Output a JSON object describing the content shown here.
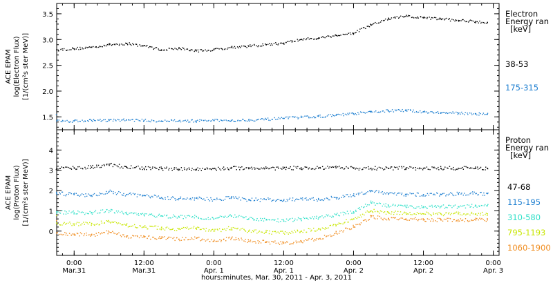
{
  "chart_data": [
    {
      "type": "scatter",
      "ylabel": [
        "ACE EPAM",
        "log(Electron Flux)",
        "[1/(cm²s ster MeV)]"
      ],
      "ylim": [
        1.25,
        3.7
      ],
      "yticks": [
        "3.5",
        "3.0",
        "2.5",
        "2.0",
        "1.5"
      ],
      "ytick_values": [
        3.5,
        3.0,
        2.5,
        2.0,
        1.5
      ],
      "legend_title": [
        "Electron",
        "Energy ran",
        "[keV]"
      ],
      "series": [
        {
          "name": "38-53",
          "color": "#000000",
          "x": [
            -6,
            0,
            6,
            12,
            18,
            24,
            30,
            36,
            42,
            48,
            54,
            60,
            66,
            72,
            78,
            84,
            90,
            96,
            102,
            108,
            114,
            120,
            126,
            132,
            138,
            142
          ],
          "y": [
            2.8,
            2.82,
            2.85,
            2.9,
            2.92,
            2.88,
            2.8,
            2.83,
            2.78,
            2.8,
            2.85,
            2.87,
            2.9,
            2.93,
            3.0,
            3.03,
            3.08,
            3.12,
            3.28,
            3.4,
            3.45,
            3.42,
            3.4,
            3.37,
            3.35,
            3.33
          ]
        },
        {
          "name": "175-315",
          "color": "#1e7fd0",
          "x": [
            -6,
            0,
            6,
            12,
            18,
            24,
            30,
            36,
            42,
            48,
            54,
            60,
            66,
            72,
            78,
            84,
            90,
            96,
            102,
            108,
            114,
            120,
            126,
            132,
            138,
            142
          ],
          "y": [
            1.42,
            1.42,
            1.43,
            1.43,
            1.44,
            1.43,
            1.42,
            1.42,
            1.42,
            1.43,
            1.43,
            1.44,
            1.45,
            1.47,
            1.49,
            1.51,
            1.53,
            1.56,
            1.59,
            1.62,
            1.62,
            1.6,
            1.58,
            1.57,
            1.56,
            1.55
          ]
        }
      ]
    },
    {
      "type": "scatter",
      "ylabel": [
        "ACE EPAM",
        "log(Proton Flux)",
        "[1/(cm²s ster MeV)]"
      ],
      "ylim": [
        -1.2,
        5.0
      ],
      "yticks": [
        "4",
        "3",
        "2",
        "1",
        "0"
      ],
      "ytick_values": [
        4,
        3,
        2,
        1,
        0
      ],
      "legend_title": [
        "Proton",
        "Energy ran",
        "[keV]"
      ],
      "series": [
        {
          "name": "47-68",
          "color": "#000000",
          "x": [
            -6,
            0,
            6,
            12,
            18,
            24,
            30,
            36,
            42,
            48,
            54,
            60,
            66,
            72,
            78,
            84,
            90,
            96,
            102,
            108,
            114,
            120,
            126,
            132,
            138,
            142
          ],
          "y": [
            3.1,
            3.12,
            3.15,
            3.3,
            3.15,
            3.1,
            3.08,
            3.05,
            3.05,
            3.08,
            3.1,
            3.12,
            3.1,
            3.1,
            3.12,
            3.1,
            3.12,
            3.1,
            3.1,
            3.1,
            3.1,
            3.1,
            3.1,
            3.1,
            3.1,
            3.1
          ]
        },
        {
          "name": "115-195",
          "color": "#1e7fd0",
          "x": [
            -6,
            0,
            6,
            12,
            18,
            24,
            30,
            36,
            42,
            48,
            54,
            60,
            66,
            72,
            78,
            84,
            90,
            96,
            102,
            108,
            114,
            120,
            126,
            132,
            138,
            142
          ],
          "y": [
            1.85,
            1.8,
            1.75,
            1.95,
            1.8,
            1.75,
            1.65,
            1.6,
            1.62,
            1.55,
            1.65,
            1.55,
            1.55,
            1.5,
            1.6,
            1.55,
            1.65,
            1.75,
            2.0,
            1.85,
            1.8,
            1.8,
            1.8,
            1.85,
            1.85,
            1.85
          ]
        },
        {
          "name": "310-580",
          "color": "#2ee0c8",
          "x": [
            -6,
            0,
            6,
            12,
            18,
            24,
            30,
            36,
            42,
            48,
            54,
            60,
            66,
            72,
            78,
            84,
            90,
            96,
            102,
            108,
            114,
            120,
            126,
            132,
            138,
            142
          ],
          "y": [
            0.95,
            0.9,
            0.92,
            1.0,
            0.85,
            0.8,
            0.75,
            0.7,
            0.72,
            0.6,
            0.75,
            0.6,
            0.55,
            0.5,
            0.6,
            0.65,
            0.8,
            0.95,
            1.4,
            1.25,
            1.2,
            1.2,
            1.2,
            1.2,
            1.25,
            1.25
          ]
        },
        {
          "name": "795-1193",
          "color": "#c8e600",
          "x": [
            -6,
            0,
            6,
            12,
            18,
            24,
            30,
            36,
            42,
            48,
            54,
            60,
            66,
            72,
            78,
            84,
            90,
            96,
            102,
            108,
            114,
            120,
            126,
            132,
            138,
            142
          ],
          "y": [
            0.4,
            0.35,
            0.35,
            0.45,
            0.3,
            0.2,
            0.15,
            0.1,
            0.15,
            0.0,
            0.15,
            0.0,
            -0.05,
            -0.1,
            0.0,
            0.1,
            0.3,
            0.6,
            1.0,
            0.9,
            0.9,
            0.85,
            0.85,
            0.85,
            0.85,
            0.85
          ]
        },
        {
          "name": "1060-1900",
          "color": "#f08c1e",
          "x": [
            -6,
            0,
            6,
            12,
            18,
            24,
            30,
            36,
            42,
            48,
            54,
            60,
            66,
            72,
            78,
            84,
            90,
            96,
            102,
            108,
            114,
            120,
            126,
            132,
            138,
            142
          ],
          "y": [
            -0.1,
            -0.15,
            -0.2,
            -0.05,
            -0.25,
            -0.3,
            -0.35,
            -0.4,
            -0.35,
            -0.5,
            -0.35,
            -0.5,
            -0.55,
            -0.6,
            -0.5,
            -0.4,
            -0.1,
            0.2,
            0.7,
            0.6,
            0.6,
            0.55,
            0.55,
            0.55,
            0.55,
            0.55
          ]
        }
      ]
    }
  ],
  "xaxis": {
    "xlim": [
      -6,
      146
    ],
    "ticks": [
      {
        "x": 0,
        "line1": "0:00",
        "line2": "Mar.31"
      },
      {
        "x": 24,
        "line1": "12:00",
        "line2": "Mar.31"
      },
      {
        "x": 48,
        "line1": "0:00",
        "line2": "Apr. 1"
      },
      {
        "x": 72,
        "line1": "12:00",
        "line2": "Apr. 1"
      },
      {
        "x": 96,
        "line1": "0:00",
        "line2": "Apr. 2"
      },
      {
        "x": 120,
        "line1": "12:00",
        "line2": "Apr. 2"
      },
      {
        "x": 144,
        "line1": "0:00",
        "line2": "Apr. 3"
      }
    ],
    "label": "hours:minutes, Mar. 30, 2011 - Apr.  3, 2011"
  }
}
